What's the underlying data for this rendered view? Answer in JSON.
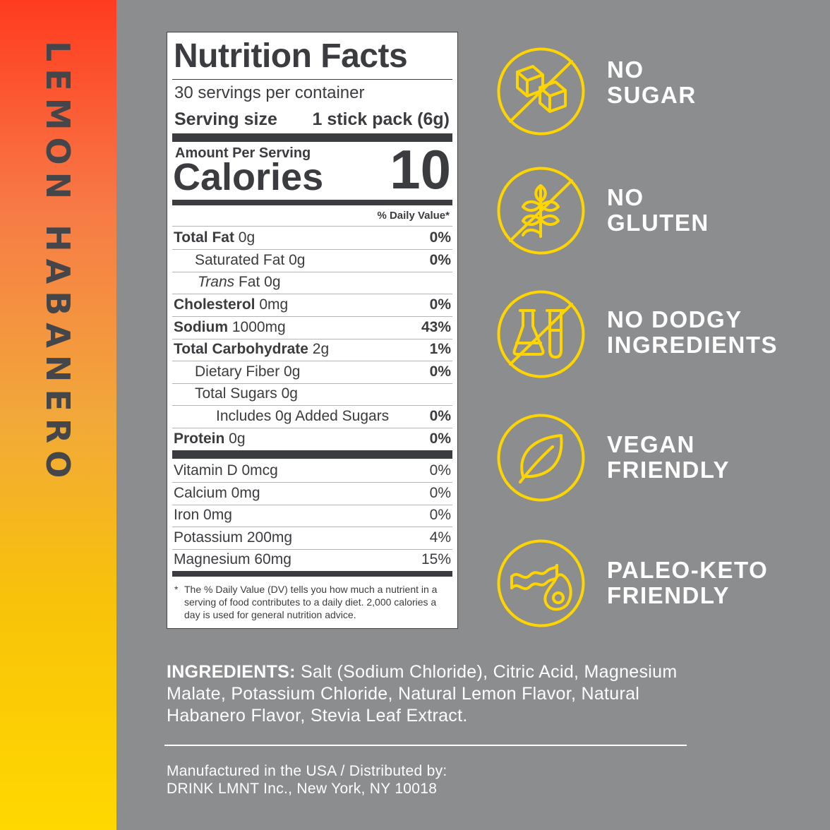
{
  "side_label": "LEMON HABANERO",
  "nutrition": {
    "title": "Nutrition Facts",
    "servings": "30 servings per container",
    "serving_size_label": "Serving size",
    "serving_size_value": "1 stick pack (6g)",
    "amount_per_serving": "Amount Per Serving",
    "calories_label": "Calories",
    "calories_value": "10",
    "daily_value_header": "% Daily Value*",
    "rows": [
      {
        "bold": "Total Fat",
        "text": " 0g",
        "pct": "0%"
      },
      {
        "bold": "",
        "text": "Saturated Fat 0g",
        "pct": "0%"
      },
      {
        "italic": "Trans",
        "text": " Fat 0g",
        "pct": ""
      },
      {
        "bold": "Cholesterol",
        "text": " 0mg",
        "pct": "0%"
      },
      {
        "bold": "Sodium",
        "text": " 1000mg",
        "pct": "43%"
      },
      {
        "bold": "Total Carbohydrate",
        "text": " 2g",
        "pct": "1%"
      },
      {
        "bold": "",
        "text": "Dietary Fiber 0g",
        "pct": "0%"
      },
      {
        "bold": "",
        "text": "Total Sugars 0g",
        "pct": ""
      },
      {
        "bold": "",
        "text": "Includes 0g Added Sugars",
        "pct": "0%"
      },
      {
        "bold": "Protein",
        "text": " 0g",
        "pct": "0%"
      }
    ],
    "vitamins": [
      {
        "text": "Vitamin D 0mcg",
        "pct": "0%"
      },
      {
        "text": "Calcium 0mg",
        "pct": "0%"
      },
      {
        "text": "Iron 0mg",
        "pct": "0%"
      },
      {
        "text": "Potassium 200mg",
        "pct": "4%"
      },
      {
        "text": "Magnesium 60mg",
        "pct": "15%"
      }
    ],
    "footnote_star": "*",
    "footnote": "The % Daily Value (DV) tells you how much a nutrient in a serving of food contributes to a daily diet. 2,000 calories a day is used for general nutrition advice."
  },
  "claims": [
    {
      "icon": "sugar-cubes-icon",
      "line1": "NO",
      "line2": "SUGAR"
    },
    {
      "icon": "wheat-icon",
      "line1": "NO",
      "line2": "GLUTEN"
    },
    {
      "icon": "lab-flask-icon",
      "line1": "NO DODGY",
      "line2": "INGREDIENTS"
    },
    {
      "icon": "leaf-icon",
      "line1": "VEGAN",
      "line2": "FRIENDLY"
    },
    {
      "icon": "bacon-avocado-icon",
      "line1": "PALEO-KETO",
      "line2": "FRIENDLY"
    }
  ],
  "ingredients": {
    "label": "INGREDIENTS:",
    "text": " Salt (Sodium Chloride), Citric Acid, Magnesium Malate, Potassium Chloride, Natural Lemon Flavor, Natural Habanero Flavor, Stevia Leaf Extract."
  },
  "manufacturer": {
    "line1": "Manufactured in the USA / Distributed by:",
    "line2": "DRINK LMNT Inc., New York, NY 10018"
  },
  "colors": {
    "background": "#8c8d8f",
    "icon_yellow": "#ffd500",
    "label_dark": "#3b3c3f",
    "strip_top": "#ff3b1f",
    "strip_bottom": "#ffd800"
  }
}
